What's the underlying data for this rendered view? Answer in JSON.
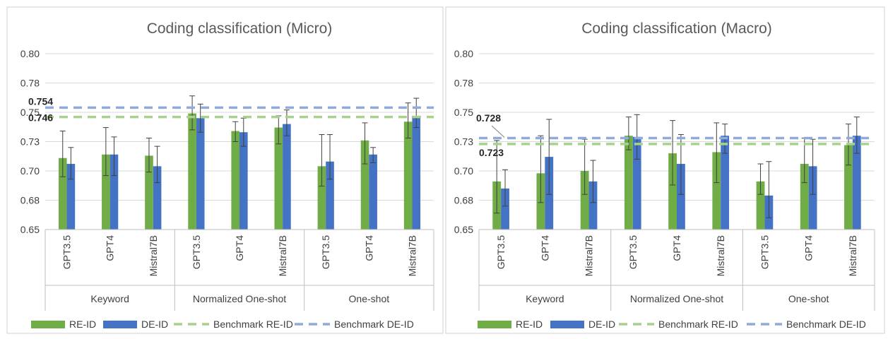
{
  "colors": {
    "re_id": "#70AD47",
    "de_id": "#4472C4",
    "bench_re": "#A9D18E",
    "bench_de": "#8FAADC",
    "grid": "#D9D9D9",
    "axis_text": "#404040",
    "title_text": "#595959"
  },
  "legend": {
    "re_id": "RE-ID",
    "de_id": "DE-ID",
    "bench_re": "Benchmark RE-ID",
    "bench_de": "Benchmark DE-ID"
  },
  "chart_data": [
    {
      "type": "bar",
      "title": "Coding classification (Micro)",
      "ylim": [
        0.65,
        0.8
      ],
      "yticks": [
        "0.65",
        "0.68",
        "0.70",
        "0.73",
        "0.75",
        "0.78",
        "0.80"
      ],
      "grid": true,
      "legend_position": "bottom",
      "groups": [
        "Keyword",
        "Normalized One-shot",
        "One-shot"
      ],
      "categories": [
        "GPT3.5",
        "GPT4",
        "Mistral7B",
        "GPT3.5",
        "GPT4",
        "Mistral7B",
        "GPT3.5",
        "GPT4",
        "Mistral7B"
      ],
      "series": [
        {
          "name": "RE-ID",
          "values": [
            0.711,
            0.714,
            0.713,
            0.749,
            0.734,
            0.737,
            0.704,
            0.726,
            0.742
          ],
          "err_low": [
            0.695,
            0.696,
            0.699,
            0.735,
            0.725,
            0.723,
            0.687,
            0.706,
            0.728
          ],
          "err_high": [
            0.734,
            0.737,
            0.728,
            0.764,
            0.742,
            0.747,
            0.731,
            0.741,
            0.758
          ]
        },
        {
          "name": "DE-ID",
          "values": [
            0.706,
            0.714,
            0.704,
            0.745,
            0.733,
            0.74,
            0.708,
            0.714,
            0.747
          ],
          "err_low": [
            0.693,
            0.696,
            0.69,
            0.733,
            0.721,
            0.73,
            0.693,
            0.707,
            0.737
          ],
          "err_high": [
            0.72,
            0.729,
            0.721,
            0.757,
            0.745,
            0.752,
            0.731,
            0.72,
            0.762
          ]
        }
      ],
      "benchmarks": [
        {
          "name": "Benchmark RE-ID",
          "value": 0.746,
          "label": "0.746"
        },
        {
          "name": "Benchmark DE-ID",
          "value": 0.754,
          "label": "0.754"
        }
      ]
    },
    {
      "type": "bar",
      "title": "Coding classification (Macro)",
      "ylim": [
        0.65,
        0.8
      ],
      "yticks": [
        "0.65",
        "0.68",
        "0.70",
        "0.73",
        "0.75",
        "0.78",
        "0.80"
      ],
      "grid": true,
      "legend_position": "bottom",
      "groups": [
        "Keyword",
        "Normalized One-shot",
        "One-shot"
      ],
      "categories": [
        "GPT3.5",
        "GPT4",
        "Mistral7B",
        "GPT3.5",
        "GPT4",
        "Mistral7B",
        "GPT3.5",
        "GPT4",
        "Mistral7B"
      ],
      "series": [
        {
          "name": "RE-ID",
          "values": [
            0.691,
            0.698,
            0.7,
            0.73,
            0.715,
            0.716,
            0.691,
            0.706,
            0.722
          ],
          "err_low": [
            0.664,
            0.673,
            0.68,
            0.718,
            0.688,
            0.69,
            0.68,
            0.69,
            0.705
          ],
          "err_high": [
            0.726,
            0.73,
            0.727,
            0.746,
            0.743,
            0.741,
            0.706,
            0.728,
            0.74
          ]
        },
        {
          "name": "DE-ID",
          "values": [
            0.685,
            0.712,
            0.691,
            0.729,
            0.706,
            0.73,
            0.679,
            0.704,
            0.73
          ],
          "err_low": [
            0.67,
            0.68,
            0.673,
            0.71,
            0.68,
            0.715,
            0.66,
            0.68,
            0.715
          ],
          "err_high": [
            0.701,
            0.744,
            0.709,
            0.748,
            0.731,
            0.74,
            0.708,
            0.727,
            0.746
          ]
        }
      ],
      "benchmarks": [
        {
          "name": "Benchmark RE-ID",
          "value": 0.723,
          "label": "0.723"
        },
        {
          "name": "Benchmark DE-ID",
          "value": 0.728,
          "label": "0.728"
        }
      ]
    }
  ]
}
